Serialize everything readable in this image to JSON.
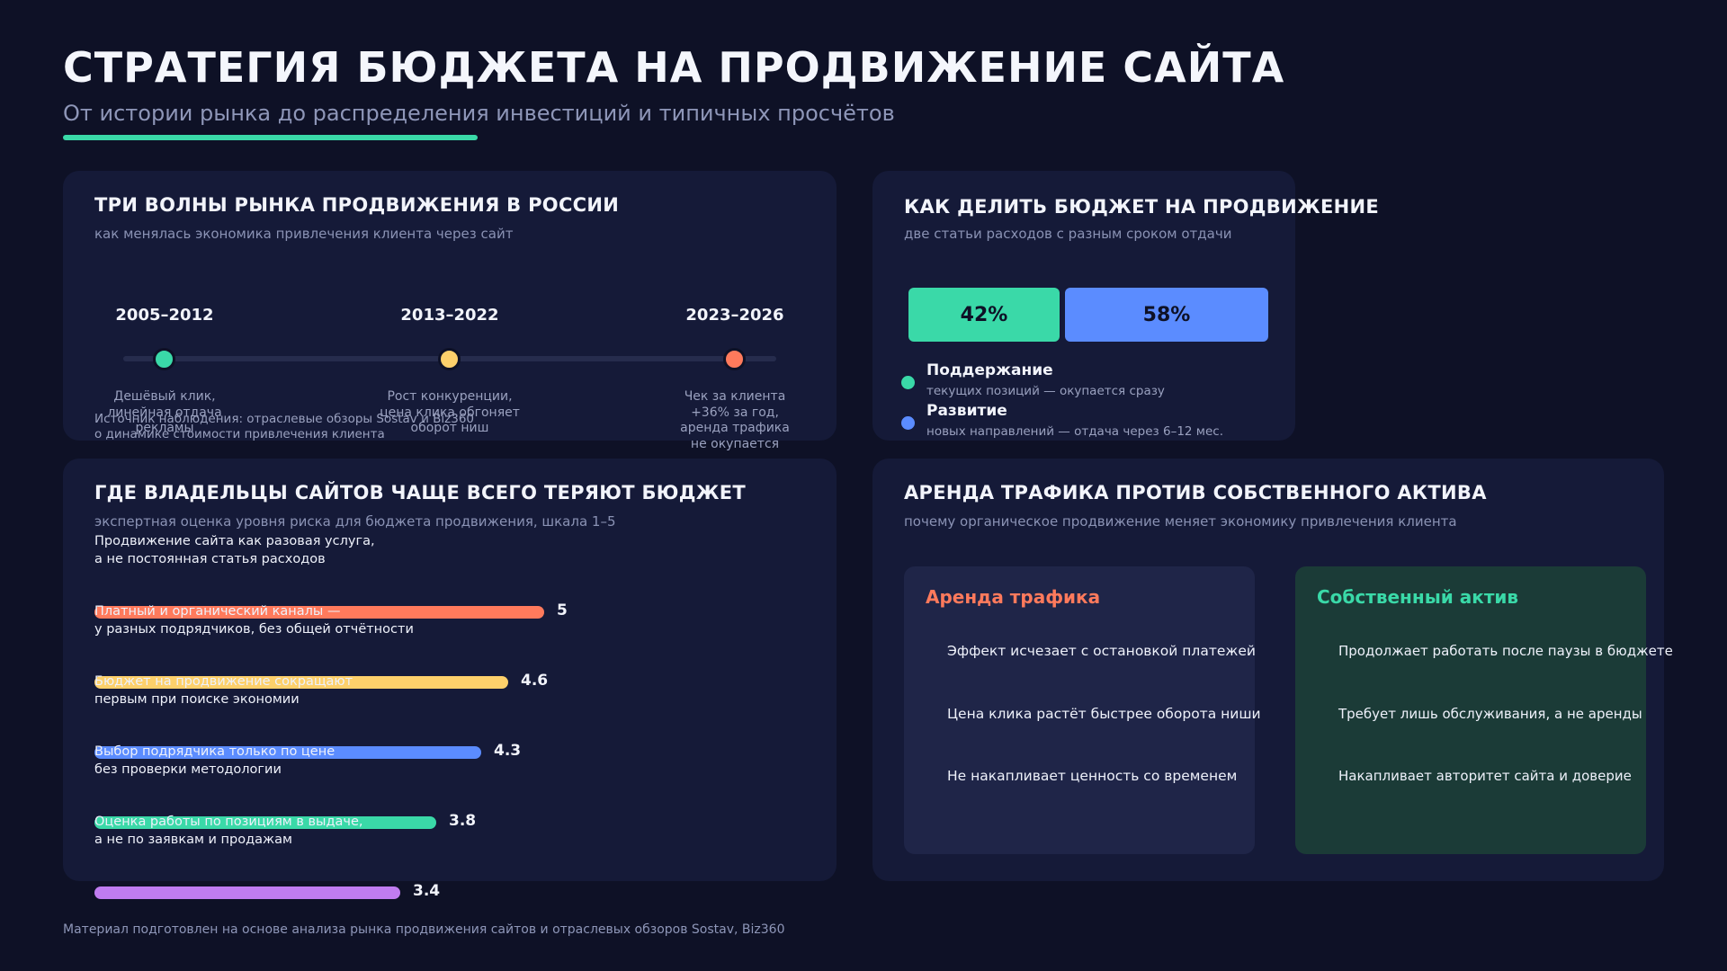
{
  "header": {
    "title": "СТРАТЕГИЯ БЮДЖЕТА НА ПРОДВИЖЕНИЕ САЙТА",
    "subtitle": "От истории рынка до распределения инвестиций и типичных просчётов"
  },
  "timeline": {
    "title": "ТРИ ВОЛНЫ РЫНКА ПРОДВИЖЕНИЯ В РОССИИ",
    "subtitle": "как менялась экономика привлечения клиента через сайт",
    "periods": [
      {
        "year": "2005–2012",
        "lines": [
          "Дешёвый клик,",
          "линейная отдача",
          "рекламы"
        ],
        "color": "#3ad9a8"
      },
      {
        "year": "2013–2022",
        "lines": [
          "Рост конкуренции,",
          "цена клика обгоняет",
          "оборот ниш"
        ],
        "color": "#fdd06b"
      },
      {
        "year": "2023–2026",
        "lines": [
          "Чек за клиента",
          "+36% за год,",
          "аренда трафика",
          "не окупается"
        ],
        "color": "#ff7a5c"
      }
    ],
    "source": [
      "Источник наблюдения: отраслевые обзоры Sostav и Biz360",
      "о динамике стоимости привлечения клиента"
    ]
  },
  "budget_split": {
    "title": "КАК ДЕЛИТЬ БЮДЖЕТ НА ПРОДВИЖЕНИЕ",
    "subtitle": "две статьи расходов с разным сроком отдачи",
    "segments": [
      {
        "label": "42%",
        "value": 42,
        "color": "#3ad9a8"
      },
      {
        "label": "58%",
        "value": 58,
        "color": "#5b8cff"
      }
    ],
    "legend": [
      {
        "title": "Поддержание",
        "sub": "текущих позиций — окупается сразу",
        "color": "#3ad9a8"
      },
      {
        "title": "Развитие",
        "sub": "новых направлений — отдача через 6–12 мес.",
        "color": "#5b8cff"
      }
    ]
  },
  "risks": {
    "title": "ГДЕ ВЛАДЕЛЬЦЫ САЙТОВ ЧАЩЕ ВСЕГО ТЕРЯЮТ БЮДЖЕТ",
    "subtitle": "экспертная оценка уровня риска для бюджета продвижения, шкала 1–5"
  },
  "chart_data": {
    "type": "bar",
    "orientation": "horizontal",
    "categories": [
      "Продвижение сайта как разовая услуга, а не постоянная статья расходов",
      "Платный и органический каналы — у разных подрядчиков, без общей отчётности",
      "Бюджет на продвижение сокращают первым при поиске экономии",
      "Выбор подрядчика только по цене без проверки методологии",
      "Оценка работы по позициям в выдаче, а не по заявкам и продажам"
    ],
    "label_lines": [
      [
        "Продвижение сайта как разовая услуга,",
        "а не постоянная статья расходов"
      ],
      [
        "Платный и органический каналы —",
        "у разных подрядчиков, без общей отчётности"
      ],
      [
        "Бюджет на продвижение сокращают",
        "первым при поиске экономии"
      ],
      [
        "Выбор подрядчика только по цене",
        "без проверки методологии"
      ],
      [
        "Оценка работы по позициям в выдаче,",
        "а не по заявкам и продажам"
      ]
    ],
    "values": [
      5,
      4.6,
      4.3,
      3.8,
      3.4
    ],
    "value_labels": [
      "5",
      "4.6",
      "4.3",
      "3.8",
      "3.4"
    ],
    "colors": [
      "#ff7a5c",
      "#fdd06b",
      "#5b8cff",
      "#3ad9a8",
      "#c07cf0"
    ],
    "xlim": [
      0,
      5
    ]
  },
  "compare": {
    "title": "АРЕНДА ТРАФИКА ПРОТИВ СОБСТВЕННОГО АКТИВА",
    "subtitle": "почему органическое продвижение меняет экономику привлечения клиента",
    "left": {
      "title": "Аренда трафика",
      "color": "#ff7a5c",
      "items": [
        "Эффект исчезает с остановкой платежей",
        "Цена клика растёт быстрее оборота ниши",
        "Не накапливает ценность со временем"
      ]
    },
    "right": {
      "title": "Собственный актив",
      "color": "#3ad9a8",
      "items": [
        "Продолжает работать после паузы в бюджете",
        "Требует лишь обслуживания, а не аренды",
        "Накапливает авторитет сайта и доверие"
      ]
    }
  },
  "footer": {
    "text": "Материал подготовлен на основе анализа рынка продвижения сайтов и отраслевых обзоров Sostav, Biz360"
  }
}
